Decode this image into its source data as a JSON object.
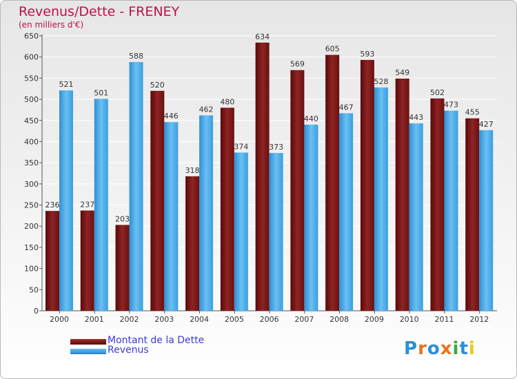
{
  "header": {
    "title": "Revenus/Dette - FRENEY",
    "subtitle": "(en milliers d'€)"
  },
  "legend": {
    "items": [
      {
        "label": "Montant de la Dette",
        "color": "#7a1414"
      },
      {
        "label": "Revenus",
        "color": "#3a9ee0"
      }
    ]
  },
  "logo": {
    "text": "Proxiti",
    "colors": [
      "#2a8fd8",
      "#e8731e",
      "#2a8fd8",
      "#e8731e",
      "#3aa845",
      "#2a8fd8",
      "#e8c81e"
    ]
  },
  "chart_data": {
    "type": "bar",
    "categories": [
      "2000",
      "2001",
      "2002",
      "2003",
      "2004",
      "2005",
      "2006",
      "2007",
      "2008",
      "2009",
      "2010",
      "2011",
      "2012"
    ],
    "series": [
      {
        "name": "Montant de la Dette",
        "color": "#7a1414",
        "values": [
          236,
          237,
          203,
          520,
          318,
          480,
          634,
          569,
          605,
          593,
          549,
          502,
          455
        ]
      },
      {
        "name": "Revenus",
        "color": "#3a9ee0",
        "values": [
          521,
          501,
          588,
          446,
          462,
          374,
          373,
          440,
          467,
          528,
          443,
          473,
          427
        ]
      }
    ],
    "ylim": [
      0,
      650
    ],
    "yticks": [
      0,
      50,
      100,
      150,
      200,
      250,
      300,
      350,
      400,
      450,
      500,
      550,
      600,
      650
    ],
    "grid": true,
    "legend_position": "bottom-left"
  }
}
